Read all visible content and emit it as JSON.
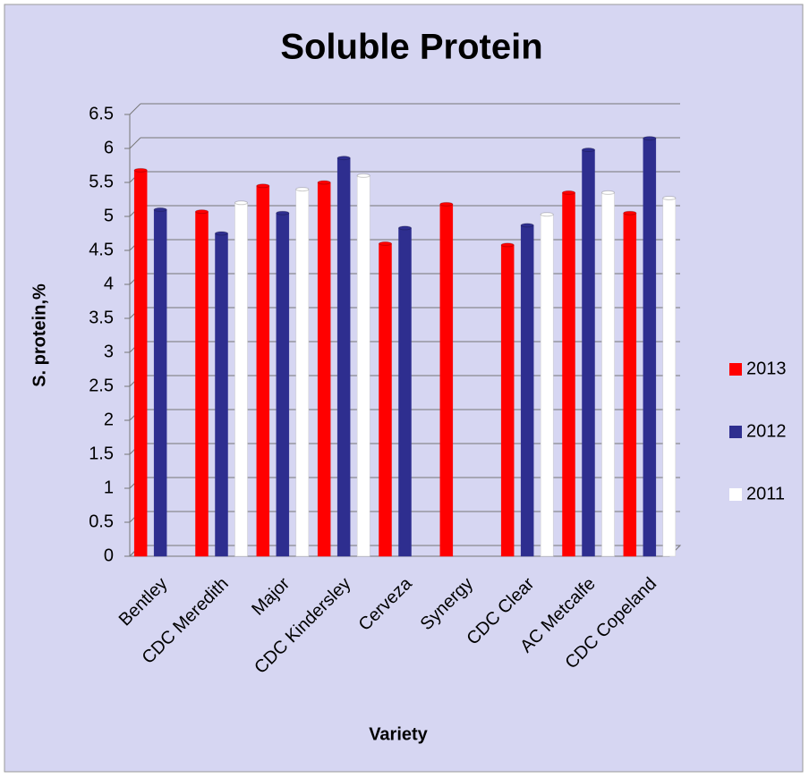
{
  "chart_data": {
    "type": "bar",
    "title": "Soluble Protein",
    "x_label": "Variety",
    "y_label": "S. protein,%",
    "categories": [
      "Bentley",
      "CDC Meredith",
      "Major",
      "CDC Kindersley",
      "Cerveza",
      "Synergy",
      "CDC Clear",
      "AC Metcalfe",
      "CDC Copeland"
    ],
    "series": [
      {
        "name": "2013",
        "color": "#ff0000",
        "values": [
          5.68,
          5.07,
          5.45,
          5.5,
          4.6,
          5.18,
          4.58,
          5.35,
          5.05
        ]
      },
      {
        "name": "2012",
        "color": "#2e2e8f",
        "values": [
          5.1,
          4.75,
          5.05,
          5.86,
          4.83,
          null,
          4.87,
          5.98,
          6.15
        ]
      },
      {
        "name": "2011",
        "color": "#ffffff",
        "values": [
          null,
          5.2,
          5.4,
          5.6,
          null,
          null,
          5.03,
          5.35,
          5.27
        ]
      }
    ],
    "ylim": [
      0,
      6.5
    ],
    "yticks": [
      0,
      0.5,
      1,
      1.5,
      2,
      2.5,
      3,
      3.5,
      4,
      4.5,
      5,
      5.5,
      6,
      6.5
    ],
    "grid": true,
    "legend": "right"
  }
}
